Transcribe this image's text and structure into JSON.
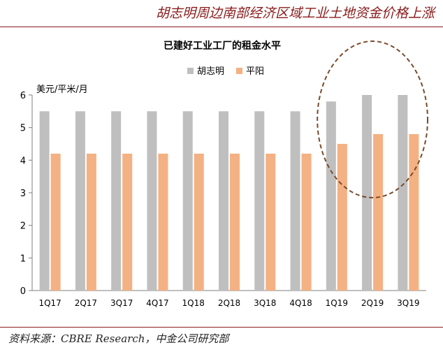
{
  "header": {
    "title": "胡志明周边南部经济区域工业土地资金价格上涨"
  },
  "footer": {
    "source": "资料来源：CBRE Research，中金公司研究部"
  },
  "chart_data": {
    "type": "bar",
    "title": "已建好工业工厂的租金水平",
    "ylabel": "美元/平米/月",
    "xlabel": "",
    "ylim": [
      0,
      6
    ],
    "yticks": [
      0,
      1,
      2,
      3,
      4,
      5,
      6
    ],
    "grid": false,
    "legend_position": "top",
    "categories": [
      "1Q17",
      "2Q17",
      "3Q17",
      "4Q17",
      "1Q18",
      "2Q18",
      "3Q18",
      "4Q18",
      "1Q19",
      "2Q19",
      "3Q19"
    ],
    "series": [
      {
        "name": "胡志明",
        "color": "#bfbfbf",
        "values": [
          5.5,
          5.5,
          5.5,
          5.5,
          5.5,
          5.5,
          5.5,
          5.5,
          5.8,
          6.0,
          6.0
        ]
      },
      {
        "name": "平阳",
        "color": "#f4b183",
        "values": [
          4.2,
          4.2,
          4.2,
          4.2,
          4.2,
          4.2,
          4.2,
          4.2,
          4.5,
          4.8,
          4.8
        ]
      }
    ],
    "annotation": {
      "type": "dashed-ellipse",
      "color": "#7a4a2a",
      "highlight_categories": [
        "1Q19",
        "2Q19",
        "3Q19"
      ]
    }
  }
}
